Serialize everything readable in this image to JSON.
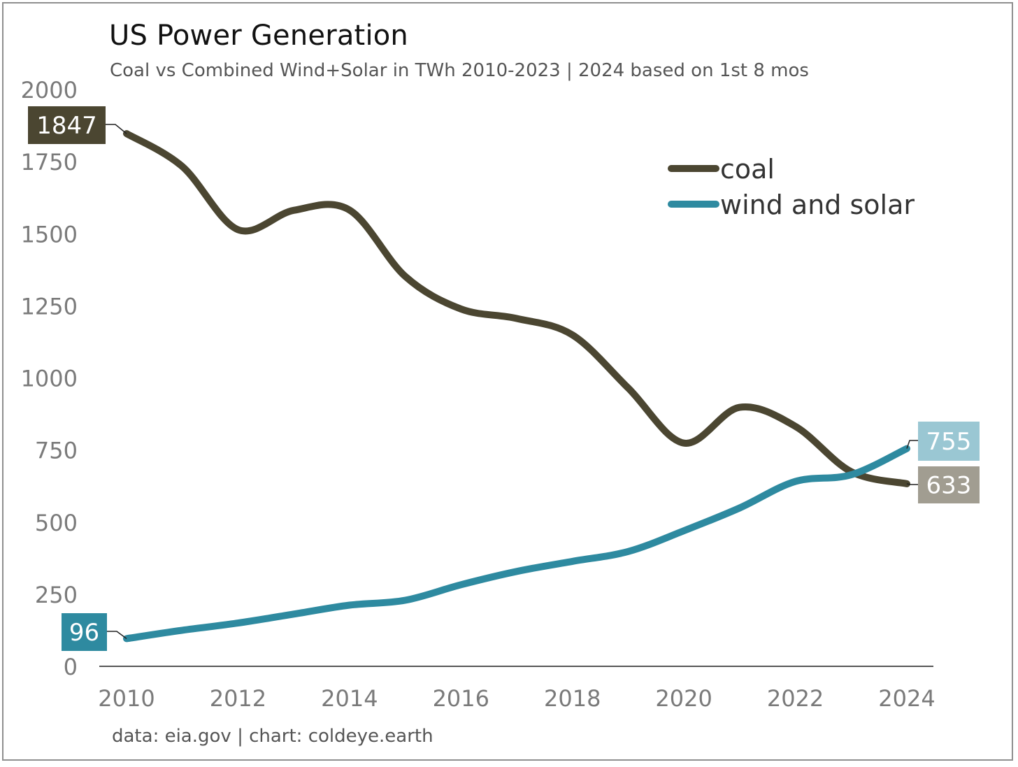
{
  "chart_data": {
    "type": "line",
    "title": "US Power Generation",
    "subtitle": "Coal vs Combined Wind+Solar in TWh 2010-2023 | 2024 based on 1st 8 mos",
    "source": "data: eia.gov | chart: coldeye.earth",
    "xlabel": "",
    "ylabel": "",
    "x": [
      2010,
      2011,
      2012,
      2013,
      2014,
      2015,
      2016,
      2017,
      2018,
      2019,
      2020,
      2021,
      2022,
      2023,
      2024
    ],
    "xlim": [
      2010,
      2024
    ],
    "ylim": [
      0,
      2000
    ],
    "xticks": [
      2010,
      2012,
      2014,
      2016,
      2018,
      2020,
      2022,
      2024
    ],
    "yticks": [
      0,
      250,
      500,
      750,
      1000,
      1250,
      1500,
      1750,
      2000
    ],
    "grid": false,
    "legend_position": "top-right",
    "series": [
      {
        "name": "coal",
        "color": "#4b4631",
        "values": [
          1847,
          1733,
          1514,
          1581,
          1582,
          1352,
          1239,
          1206,
          1149,
          965,
          774,
          898,
          832,
          675,
          633
        ],
        "start_label": "1847",
        "end_label": "633",
        "start_label_color": "#4b4631",
        "end_label_color": "#a19d91"
      },
      {
        "name": "wind and solar",
        "color": "#2e8aa0",
        "values": [
          96,
          125,
          150,
          181,
          212,
          229,
          283,
          329,
          364,
          398,
          470,
          549,
          641,
          664,
          755
        ],
        "start_label": "96",
        "end_label": "755",
        "start_label_color": "#2e8aa0",
        "end_label_color": "#9ac7d3"
      }
    ]
  }
}
